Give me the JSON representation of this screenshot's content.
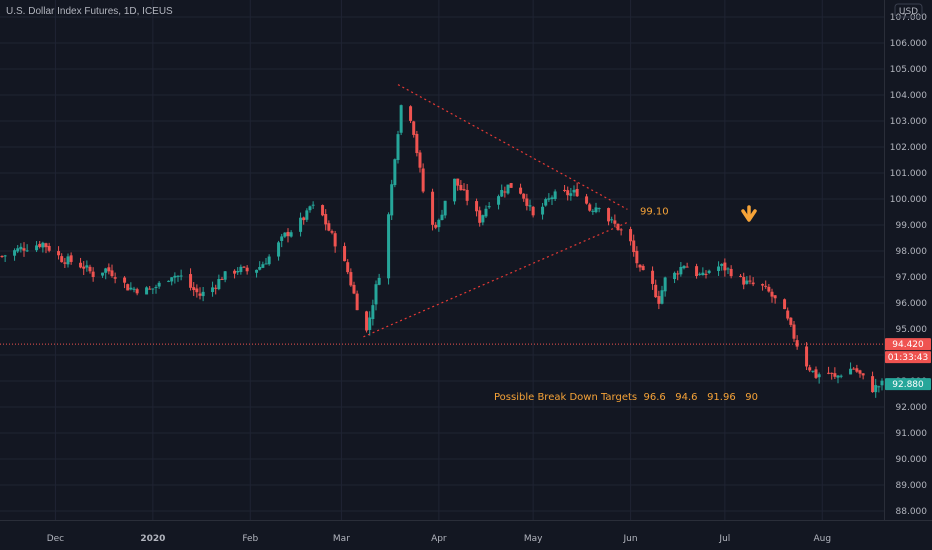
{
  "header": {
    "symbol_title": "U.S. Dollar Index Futures, 1D, ICEUS",
    "currency_badge": "USD"
  },
  "price_tags": {
    "last_price": "94.420",
    "countdown": "01:33:43",
    "current_price": "92.880"
  },
  "annotations": {
    "apex_level": "99.10",
    "targets_text": "Possible Break Down Targets  96.6   94.6   91.96   90"
  },
  "colors": {
    "background": "#131722",
    "grid": "#1f2433",
    "up": "#26a69a",
    "down": "#ef5350",
    "annotation": "#f6a338",
    "trendline": "#e53935",
    "price_line": "#ef5350",
    "current_tag": "#26a69a"
  },
  "chart_data": {
    "type": "candlestick",
    "title": "U.S. Dollar Index Futures, 1D, ICEUS",
    "y_unit": "USD",
    "y_ticks": [
      88,
      89,
      90,
      91,
      92,
      93,
      94,
      95,
      96,
      97,
      98,
      99,
      100,
      101,
      102,
      103,
      104,
      105,
      106,
      107
    ],
    "ylim": [
      87.5,
      108
    ],
    "x_ticks": [
      {
        "label": "Dec",
        "date": "2019-12-01"
      },
      {
        "label": "2020",
        "date": "2020-01-01",
        "bold": true
      },
      {
        "label": "Feb",
        "date": "2020-02-01"
      },
      {
        "label": "Mar",
        "date": "2020-03-01"
      },
      {
        "label": "Apr",
        "date": "2020-04-01"
      },
      {
        "label": "May",
        "date": "2020-05-01"
      },
      {
        "label": "Jun",
        "date": "2020-06-01"
      },
      {
        "label": "Jul",
        "date": "2020-07-01"
      },
      {
        "label": "Aug",
        "date": "2020-08-01"
      }
    ],
    "xlim": [
      "2019-11-14",
      "2020-08-20"
    ],
    "price_line": 94.42,
    "last_close": 92.88,
    "grid": true,
    "close_path": [
      [
        "2019-11-14",
        97.8
      ],
      [
        "2019-11-20",
        98.1
      ],
      [
        "2019-11-27",
        98.3
      ],
      [
        "2019-12-03",
        97.7
      ],
      [
        "2019-12-06",
        97.6
      ],
      [
        "2019-12-10",
        97.4
      ],
      [
        "2019-12-13",
        97.1
      ],
      [
        "2019-12-17",
        97.3
      ],
      [
        "2019-12-20",
        97.1
      ],
      [
        "2019-12-24",
        96.6
      ],
      [
        "2019-12-28",
        96.5
      ],
      [
        "2019-12-31",
        96.5
      ],
      [
        "2020-01-03",
        96.7
      ],
      [
        "2020-01-07",
        97.1
      ],
      [
        "2020-01-10",
        97.0
      ],
      [
        "2020-01-13",
        96.6
      ],
      [
        "2020-01-16",
        96.3
      ],
      [
        "2020-01-20",
        96.6
      ],
      [
        "2020-01-23",
        97.0
      ],
      [
        "2020-01-28",
        97.3
      ],
      [
        "2020-02-01",
        97.2
      ],
      [
        "2020-02-04",
        97.4
      ],
      [
        "2020-02-08",
        97.9
      ],
      [
        "2020-02-12",
        98.6
      ],
      [
        "2020-02-16",
        99.0
      ],
      [
        "2020-02-19",
        99.4
      ],
      [
        "2020-02-20",
        99.7
      ],
      [
        "2020-02-23",
        99.6
      ],
      [
        "2020-02-26",
        98.8
      ],
      [
        "2020-02-29",
        98.1
      ],
      [
        "2020-03-03",
        97.2
      ],
      [
        "2020-03-06",
        95.9
      ],
      [
        "2020-03-09",
        94.9
      ],
      [
        "2020-03-12",
        96.6
      ],
      [
        "2020-03-15",
        98.2
      ],
      [
        "2020-03-18",
        101.7
      ],
      [
        "2020-03-20",
        103.6
      ],
      [
        "2020-03-22",
        103.7
      ],
      [
        "2020-03-24",
        102.6
      ],
      [
        "2020-03-27",
        100.3
      ],
      [
        "2020-03-29",
        98.9
      ],
      [
        "2020-04-01",
        99.1
      ],
      [
        "2020-04-04",
        100.4
      ],
      [
        "2020-04-06",
        100.7
      ],
      [
        "2020-04-09",
        100.2
      ],
      [
        "2020-04-12",
        99.6
      ],
      [
        "2020-04-14",
        99.2
      ],
      [
        "2020-04-17",
        99.9
      ],
      [
        "2020-04-20",
        100.2
      ],
      [
        "2020-04-23",
        100.5
      ],
      [
        "2020-04-26",
        100.5
      ],
      [
        "2020-04-29",
        99.9
      ],
      [
        "2020-05-01",
        99.3
      ],
      [
        "2020-05-04",
        99.7
      ],
      [
        "2020-05-07",
        100.1
      ],
      [
        "2020-05-10",
        100.2
      ],
      [
        "2020-05-13",
        100.2
      ],
      [
        "2020-05-16",
        100.3
      ],
      [
        "2020-05-19",
        99.6
      ],
      [
        "2020-05-22",
        99.8
      ],
      [
        "2020-05-25",
        99.2
      ],
      [
        "2020-05-28",
        98.9
      ],
      [
        "2020-06-01",
        98.3
      ],
      [
        "2020-06-04",
        97.2
      ],
      [
        "2020-06-07",
        96.9
      ],
      [
        "2020-06-10",
        96.1
      ],
      [
        "2020-06-12",
        96.9
      ],
      [
        "2020-06-15",
        97.1
      ],
      [
        "2020-06-18",
        97.5
      ],
      [
        "2020-06-21",
        97.2
      ],
      [
        "2020-06-24",
        97.0
      ],
      [
        "2020-06-27",
        97.4
      ],
      [
        "2020-06-30",
        97.4
      ],
      [
        "2020-07-03",
        97.2
      ],
      [
        "2020-07-06",
        96.9
      ],
      [
        "2020-07-09",
        96.7
      ],
      [
        "2020-07-12",
        96.7
      ],
      [
        "2020-07-15",
        96.4
      ],
      [
        "2020-07-17",
        96.1
      ],
      [
        "2020-07-20",
        95.6
      ],
      [
        "2020-07-22",
        95.0
      ],
      [
        "2020-07-24",
        94.4
      ],
      [
        "2020-07-26",
        93.8
      ],
      [
        "2020-07-28",
        93.5
      ],
      [
        "2020-07-30",
        93.2
      ],
      [
        "2020-08-02",
        93.4
      ],
      [
        "2020-08-05",
        93.1
      ],
      [
        "2020-08-08",
        93.4
      ],
      [
        "2020-08-11",
        93.5
      ],
      [
        "2020-08-14",
        93.1
      ],
      [
        "2020-08-17",
        92.7
      ],
      [
        "2020-08-20",
        92.88
      ]
    ],
    "trendlines": [
      {
        "name": "upper",
        "from": [
          "2020-03-19",
          104.4
        ],
        "to": [
          "2020-05-31",
          99.6
        ]
      },
      {
        "name": "lower",
        "from": [
          "2020-03-08",
          94.7
        ],
        "to": [
          "2020-05-31",
          99.1
        ]
      }
    ]
  }
}
